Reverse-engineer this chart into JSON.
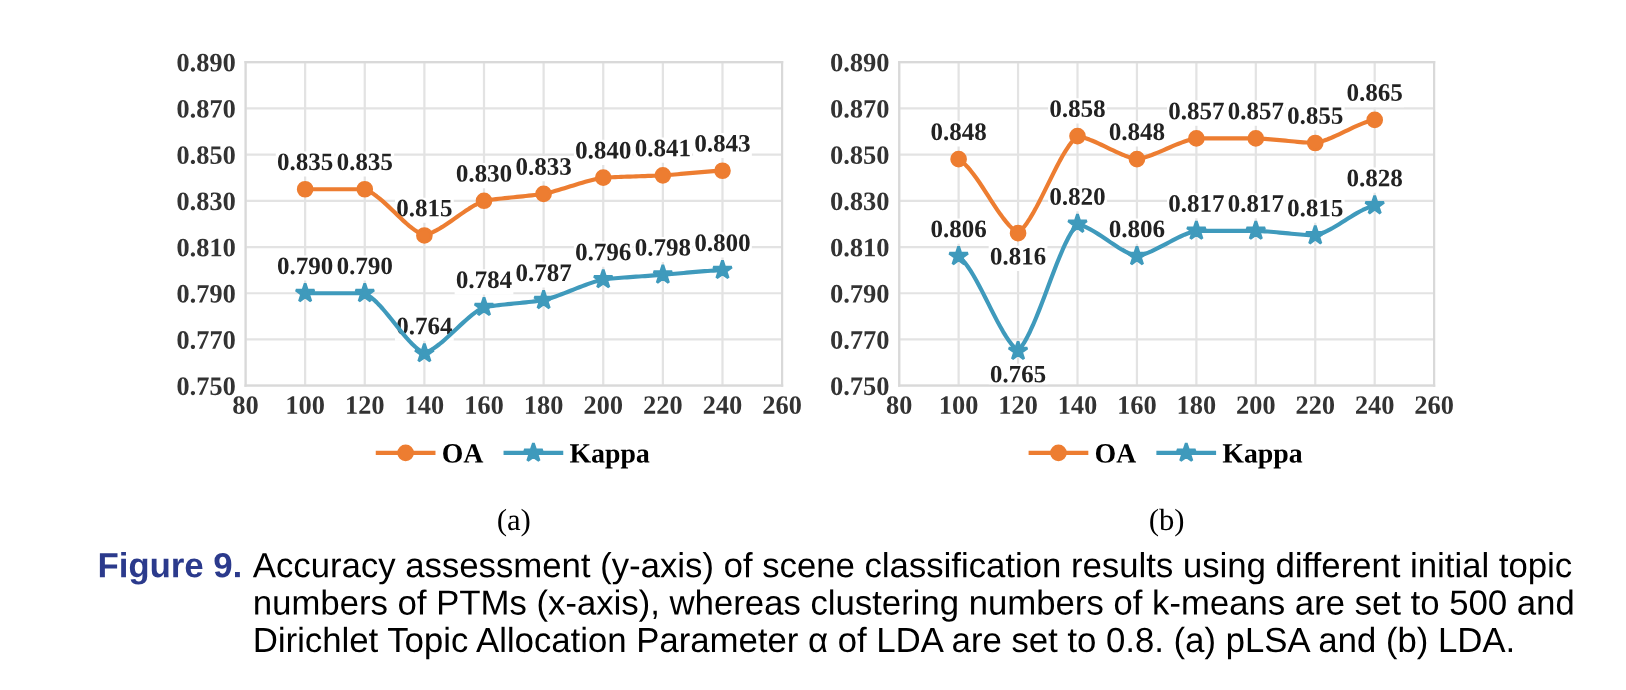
{
  "chart_data": [
    {
      "type": "line",
      "title": "(a)",
      "x": [
        100,
        120,
        140,
        160,
        180,
        200,
        220,
        240
      ],
      "series": [
        {
          "name": "OA",
          "color": "#ed7d31",
          "marker": "circle",
          "values": [
            0.835,
            0.835,
            0.815,
            0.83,
            0.833,
            0.84,
            0.841,
            0.843
          ],
          "value_labels": [
            "0.835",
            "0.835",
            "0.815",
            "0.830",
            "0.833",
            "0.840",
            "0.841",
            "0.843"
          ]
        },
        {
          "name": "Kappa",
          "color": "#3f9abc",
          "marker": "star",
          "values": [
            0.79,
            0.79,
            0.764,
            0.784,
            0.787,
            0.796,
            0.798,
            0.8
          ],
          "value_labels": [
            "0.790",
            "0.790",
            "0.764",
            "0.784",
            "0.787",
            "0.796",
            "0.798",
            "0.800"
          ]
        }
      ],
      "xlim": [
        80,
        260
      ],
      "xticks": [
        80,
        100,
        120,
        140,
        160,
        180,
        200,
        220,
        240,
        260
      ],
      "ylim": [
        0.75,
        0.89
      ],
      "yticks": [
        {
          "value": 0.75,
          "label": "0.750"
        },
        {
          "value": 0.77,
          "label": "0.770"
        },
        {
          "value": 0.79,
          "label": "0.790"
        },
        {
          "value": 0.81,
          "label": "0.810"
        },
        {
          "value": 0.83,
          "label": "0.830"
        },
        {
          "value": 0.85,
          "label": "0.850"
        },
        {
          "value": 0.87,
          "label": "0.870"
        },
        {
          "value": 0.89,
          "label": "0.890"
        }
      ],
      "grid": true,
      "legend": "bottom",
      "data_labels": true,
      "annotations": [
        "Figure 9.",
        "Accuracy assessment (y-axis) of scene classification results using different initial topic numbers of PTMs (x-axis), whereas clustering numbers of k-means are set to 500 and Dirichlet Topic Allocation Parameter α of LDA are set to 0.8. (a) pLSA and (b) LDA."
      ]
    },
    {
      "type": "line",
      "title": "(b)",
      "x": [
        100,
        120,
        140,
        160,
        180,
        200,
        220,
        240
      ],
      "series": [
        {
          "name": "OA",
          "color": "#ed7d31",
          "marker": "circle",
          "values": [
            0.848,
            0.816,
            0.858,
            0.848,
            0.857,
            0.857,
            0.855,
            0.865
          ],
          "value_labels": [
            "0.848",
            "0.816",
            "0.858",
            "0.848",
            "0.857",
            "0.857",
            "0.855",
            "0.865"
          ]
        },
        {
          "name": "Kappa",
          "color": "#3f9abc",
          "marker": "star",
          "values": [
            0.806,
            0.765,
            0.82,
            0.806,
            0.817,
            0.817,
            0.815,
            0.828
          ],
          "value_labels": [
            "0.806",
            "0.765",
            "0.820",
            "0.806",
            "0.817",
            "0.817",
            "0.815",
            "0.828"
          ]
        }
      ],
      "xlim": [
        80,
        260
      ],
      "xticks": [
        80,
        100,
        120,
        140,
        160,
        180,
        200,
        220,
        240,
        260
      ],
      "ylim": [
        0.75,
        0.89
      ],
      "yticks": [
        {
          "value": 0.75,
          "label": "0.750"
        },
        {
          "value": 0.77,
          "label": "0.770"
        },
        {
          "value": 0.79,
          "label": "0.790"
        },
        {
          "value": 0.81,
          "label": "0.810"
        },
        {
          "value": 0.83,
          "label": "0.830"
        },
        {
          "value": 0.85,
          "label": "0.850"
        },
        {
          "value": 0.87,
          "label": "0.870"
        },
        {
          "value": 0.89,
          "label": "0.890"
        }
      ],
      "grid": true,
      "legend": "bottom",
      "data_labels": true
    }
  ]
}
